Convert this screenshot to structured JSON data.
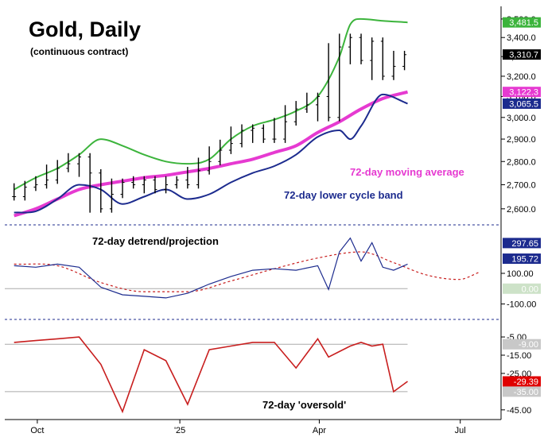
{
  "chart_data": [
    {
      "type": "line",
      "panel": "price",
      "title": "Gold, Daily",
      "subtitle": "(continuous contract)",
      "x_ticks": [
        "Oct",
        "'25",
        "Apr",
        "Jul"
      ],
      "y_ticks": [
        "3,500.0",
        "3,400.0",
        "3,300.0",
        "3,200.0",
        "3,100.0",
        "3,000.0",
        "2,900.0",
        "2,800.0",
        "2,700.0",
        "2,600.0"
      ],
      "y_scale": "log",
      "ylim": [
        2545,
        3570
      ],
      "series": [
        {
          "name": "",
          "style": "ohlc-bars",
          "color": "#000000",
          "x": [
            "Sep 16",
            "Sep 23",
            "Sep 30",
            "Oct 7",
            "Oct 14",
            "Oct 21",
            "Oct 28",
            "Nov 4",
            "Nov 11",
            "Nov 18",
            "Nov 25",
            "Dec 2",
            "Dec 9",
            "Dec 16",
            "Dec 23",
            "Dec 30",
            "Jan 6",
            "Jan 13",
            "Jan 20",
            "Jan 27",
            "Feb 3",
            "Feb 10",
            "Feb 17",
            "Feb 24",
            "Mar 3",
            "Mar 10",
            "Mar 17",
            "Mar 24",
            "Mar 31",
            "Apr 7",
            "Apr 14",
            "Apr 21",
            "Apr 28",
            "May 5",
            "May 12",
            "May 19",
            "May 26"
          ],
          "values": [
            2650,
            2690,
            2700,
            2720,
            2770,
            2790,
            2820,
            2750,
            2600,
            2660,
            2710,
            2700,
            2720,
            2680,
            2700,
            2720,
            2700,
            2760,
            2800,
            2850,
            2880,
            2940,
            2950,
            2900,
            2900,
            2980,
            3040,
            3060,
            3100,
            3000,
            3350,
            3400,
            3280,
            3380,
            3200,
            3250,
            3310
          ]
        },
        {
          "name": "",
          "style": "upper-band",
          "color": "#3cb43c",
          "x": [
            "Sep 16",
            "Sep 30",
            "Oct 14",
            "Oct 28",
            "Nov 11",
            "Nov 25",
            "Dec 9",
            "Dec 23",
            "Jan 6",
            "Jan 20",
            "Feb 3",
            "Feb 17",
            "Mar 3",
            "Mar 17",
            "Mar 31",
            "Apr 14",
            "Apr 21",
            "Apr 28",
            "May 12",
            "May 28"
          ],
          "values": [
            2680,
            2730,
            2770,
            2830,
            2900,
            2870,
            2830,
            2800,
            2790,
            2810,
            2900,
            2960,
            2990,
            3030,
            3100,
            3300,
            3470,
            3500,
            3490,
            3481.5
          ]
        },
        {
          "name": "",
          "style": "lower-band",
          "color": "#1c2b8e",
          "x": [
            "Sep 16",
            "Sep 30",
            "Oct 14",
            "Oct 28",
            "Nov 11",
            "Nov 25",
            "Dec 9",
            "Dec 23",
            "Jan 6",
            "Jan 20",
            "Feb 3",
            "Feb 17",
            "Mar 3",
            "Mar 17",
            "Mar 31",
            "Apr 14",
            "Apr 21",
            "Apr 28",
            "May 12",
            "May 28"
          ],
          "values": [
            2585,
            2590,
            2640,
            2700,
            2680,
            2620,
            2650,
            2680,
            2640,
            2660,
            2710,
            2750,
            2780,
            2830,
            2910,
            2940,
            2900,
            2960,
            3110,
            3065.5
          ]
        },
        {
          "name": "",
          "style": "moving-average",
          "color": "#e63ad1",
          "x": [
            "Sep 16",
            "Sep 30",
            "Oct 14",
            "Oct 28",
            "Nov 11",
            "Nov 25",
            "Dec 9",
            "Dec 23",
            "Jan 6",
            "Jan 20",
            "Feb 3",
            "Feb 17",
            "Mar 3",
            "Mar 17",
            "Mar 31",
            "Apr 14",
            "Apr 28",
            "May 12",
            "May 28"
          ],
          "values": [
            2572,
            2600,
            2640,
            2680,
            2700,
            2715,
            2730,
            2740,
            2755,
            2770,
            2790,
            2810,
            2840,
            2870,
            2930,
            2980,
            3040,
            3090,
            3122.3
          ]
        }
      ],
      "price_labels": [
        {
          "text": "3,481.5",
          "bg": "#3cb43c",
          "fg": "#ffffff",
          "value": 3481.5
        },
        {
          "text": "3,310.7",
          "bg": "#000000",
          "fg": "#ffffff",
          "value": 3310.7
        },
        {
          "text": "3,122.3",
          "bg": "#e63ad1",
          "fg": "#ffffff",
          "value": 3122.3
        },
        {
          "text": "3,065.5",
          "bg": "#1c2b8e",
          "fg": "#ffffff",
          "value": 3065.5
        }
      ],
      "annotations": [
        {
          "text": "72-day moving average",
          "color": "#e63ad1"
        },
        {
          "text": "72-day lower cycle band",
          "color": "#1c2b8e"
        }
      ]
    },
    {
      "type": "line",
      "panel": "detrend",
      "title": "72-day detrend/projection",
      "y_ticks": [
        "100.00",
        "-100.00"
      ],
      "ylim": [
        -180,
        380
      ],
      "series": [
        {
          "name": "",
          "style": "detrend",
          "color": "#1c2b8e",
          "x": [
            "Sep 16",
            "Sep 30",
            "Oct 14",
            "Oct 28",
            "Nov 11",
            "Nov 25",
            "Dec 9",
            "Dec 23",
            "Jan 6",
            "Jan 20",
            "Feb 3",
            "Feb 17",
            "Mar 3",
            "Mar 17",
            "Mar 31",
            "Apr 7",
            "Apr 14",
            "Apr 21",
            "Apr 28",
            "May 5",
            "May 12",
            "May 19",
            "May 28"
          ],
          "values": [
            150,
            140,
            160,
            140,
            10,
            -40,
            -50,
            -60,
            -30,
            30,
            80,
            120,
            130,
            120,
            150,
            -5,
            240,
            330,
            180,
            300,
            140,
            120,
            160
          ]
        },
        {
          "name": "",
          "style": "projection",
          "color": "#c81e1e",
          "x": [
            "Sep 16",
            "Oct 14",
            "Nov 11",
            "Dec 9",
            "Jan 6",
            "Feb 3",
            "Mar 3",
            "Mar 31",
            "Apr 28",
            "May 19",
            "Jun 9",
            "Jun 30",
            "Jul 14"
          ],
          "values": [
            160,
            150,
            40,
            -20,
            -20,
            50,
            130,
            200,
            240,
            170,
            90,
            60,
            110
          ]
        }
      ],
      "reference_lines": [
        0
      ],
      "value_labels": [
        {
          "text": "297.65",
          "bg": "#1c2b8e",
          "fg": "#ffffff",
          "value": 297.65
        },
        {
          "text": "195.72",
          "bg": "#1c2b8e",
          "fg": "#ffffff",
          "value": 195.72
        },
        {
          "text": "0.00",
          "bg": "#cde2c8",
          "fg": "#ffffff",
          "value": 0
        }
      ]
    },
    {
      "type": "line",
      "panel": "oversold",
      "title": "72-day 'oversold'",
      "y_ticks": [
        "-5.00",
        "-15.00",
        "-25.00",
        "-45.00"
      ],
      "ylim": [
        -49,
        2
      ],
      "series": [
        {
          "name": "",
          "style": "oversold",
          "color": "#c81e1e",
          "x": [
            "Sep 16",
            "Sep 30",
            "Oct 14",
            "Oct 28",
            "Nov 11",
            "Nov 25",
            "Dec 9",
            "Dec 23",
            "Jan 6",
            "Jan 20",
            "Feb 3",
            "Feb 17",
            "Mar 3",
            "Mar 17",
            "Mar 31",
            "Apr 7",
            "Apr 14",
            "Apr 21",
            "Apr 28",
            "May 5",
            "May 12",
            "May 19",
            "May 28"
          ],
          "values": [
            -8,
            -7,
            -6,
            -5,
            -20,
            -46,
            -12,
            -18,
            -42,
            -12,
            -10,
            -8,
            -8,
            -22,
            -6,
            -16,
            -13,
            -10,
            -8,
            -10,
            -9,
            -35,
            -29.39
          ]
        }
      ],
      "reference_lines": [
        -9,
        -35
      ],
      "value_labels": [
        {
          "text": "-9.00",
          "bg": "#c8c8c8",
          "fg": "#ffffff",
          "value": -9
        },
        {
          "text": "-29.39",
          "bg": "#e00000",
          "fg": "#ffffff",
          "value": -29.39
        },
        {
          "text": "-35.00",
          "bg": "#c8c8c8",
          "fg": "#ffffff",
          "value": -35
        }
      ]
    }
  ]
}
